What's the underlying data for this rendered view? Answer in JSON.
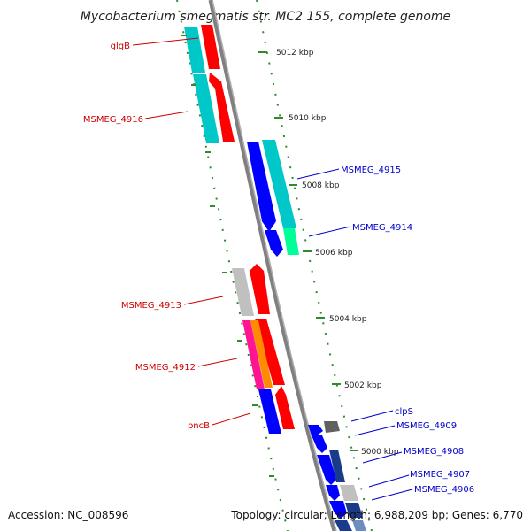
{
  "title": "Mycobacterium smegmatis str. MC2 155, complete genome",
  "accession": "Accession: NC_008596",
  "summary": "Topology: circular; Length: 6,988,209 bp; Genes: 6,770",
  "colors": {
    "backbone": "#808080",
    "dots": "#2e8b2e",
    "label_reverse": "#cc0000",
    "label_forward": "#0000cc",
    "cds": "#ff0000",
    "cds_forward": "#0000ff",
    "cog_cyan": "#00c8c8",
    "cog_gray": "#c0c0c0",
    "cog_magenta": "#ff1493",
    "cog_orange": "#ff8c00",
    "cog_green": "#00ff99",
    "cog_navy": "#1a3a8a",
    "cog_dark": "#606060"
  },
  "ticks": [
    "5012 kbp",
    "5010 kbp",
    "5008 kbp",
    "5006 kbp",
    "5004 kbp",
    "5002 kbp",
    "5000 kbp"
  ],
  "reverse_genes": [
    "glgB",
    "MSMEG_4916",
    "MSMEG_4913",
    "MSMEG_4912",
    "pncB"
  ],
  "forward_genes": [
    "MSMEG_4915",
    "MSMEG_4914",
    "clpS",
    "MSMEG_4909",
    "MSMEG_4908",
    "MSMEG_4907",
    "MSMEG_4906"
  ]
}
